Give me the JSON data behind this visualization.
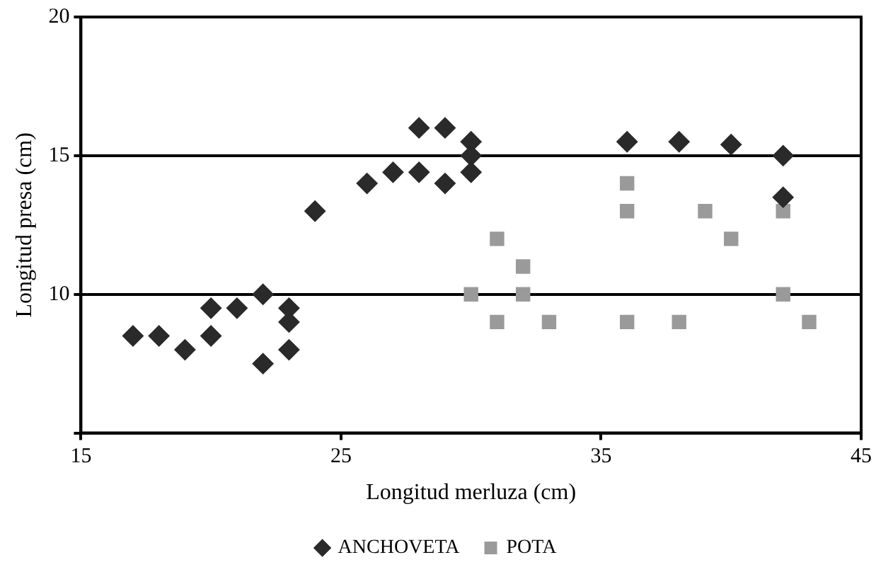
{
  "chart_data": {
    "type": "scatter",
    "xlabel": "Longitud merluza (cm)",
    "ylabel": "Longitud presa (cm)",
    "xlim": [
      15,
      45
    ],
    "xticks": [
      15,
      25,
      35,
      45
    ],
    "ylim": [
      5,
      20
    ],
    "yticks": [
      {
        "value": 5,
        "label": null
      },
      10,
      15,
      20
    ],
    "grid": "y",
    "legend": "bottom",
    "series": [
      {
        "name": "ANCHOVETA",
        "color": "#2a2a2a",
        "marker": "diamond",
        "x": [
          17,
          18,
          19,
          20,
          20,
          21,
          22,
          22,
          23,
          23,
          23,
          24,
          26,
          27,
          28,
          28,
          29,
          29,
          30,
          30,
          30,
          36,
          38,
          40,
          42,
          42
        ],
        "values": [
          8.5,
          8.5,
          8,
          9.5,
          8.5,
          9.5,
          10,
          7.5,
          9.5,
          9,
          8,
          13,
          14,
          14.4,
          16,
          14.4,
          16,
          14,
          15.5,
          15,
          14.4,
          15.5,
          15.5,
          15.4,
          15,
          13.5
        ]
      },
      {
        "name": "POTA",
        "color": "#9a9a9a",
        "marker": "square",
        "x": [
          30,
          31,
          31,
          32,
          32,
          33,
          36,
          36,
          36,
          38,
          39,
          40,
          42,
          42,
          43
        ],
        "values": [
          10,
          12,
          9,
          11,
          10,
          9,
          14,
          13,
          9,
          9,
          13,
          12,
          13,
          10,
          9
        ]
      }
    ]
  }
}
